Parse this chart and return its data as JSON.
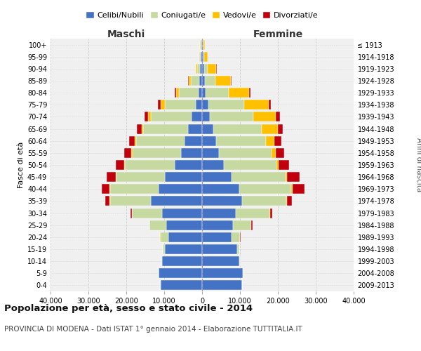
{
  "age_groups": [
    "100+",
    "95-99",
    "90-94",
    "85-89",
    "80-84",
    "75-79",
    "70-74",
    "65-69",
    "60-64",
    "55-59",
    "50-54",
    "45-49",
    "40-44",
    "35-39",
    "30-34",
    "25-29",
    "20-24",
    "15-19",
    "10-14",
    "5-9",
    "0-4"
  ],
  "birth_years": [
    "≤ 1913",
    "1914-1918",
    "1919-1923",
    "1924-1928",
    "1929-1933",
    "1934-1938",
    "1939-1943",
    "1944-1948",
    "1949-1953",
    "1954-1958",
    "1959-1963",
    "1964-1968",
    "1969-1973",
    "1974-1978",
    "1979-1983",
    "1984-1988",
    "1989-1993",
    "1994-1998",
    "1999-2003",
    "2004-2008",
    "2009-2013"
  ],
  "maschi": {
    "celibi": [
      200,
      300,
      500,
      700,
      1000,
      1700,
      2700,
      3700,
      4600,
      5600,
      7200,
      9800,
      11500,
      13500,
      10500,
      9500,
      8800,
      9800,
      10500,
      11500,
      11000
    ],
    "coniugati": [
      200,
      300,
      800,
      2300,
      5200,
      8200,
      10800,
      11800,
      12800,
      12800,
      13200,
      12800,
      12800,
      10800,
      8000,
      4300,
      2200,
      600,
      150,
      50,
      20
    ],
    "vedovi": [
      80,
      150,
      300,
      500,
      700,
      1000,
      700,
      500,
      350,
      250,
      200,
      200,
      150,
      100,
      50,
      30,
      20,
      10,
      5,
      3,
      2
    ],
    "divorziati": [
      20,
      50,
      80,
      150,
      250,
      700,
      1000,
      1300,
      1600,
      1900,
      2100,
      2300,
      2100,
      1100,
      400,
      150,
      80,
      30,
      10,
      5,
      3
    ]
  },
  "femmine": {
    "nubili": [
      200,
      300,
      500,
      700,
      1000,
      1600,
      2100,
      2900,
      3700,
      4500,
      5800,
      7800,
      9900,
      10500,
      8800,
      8200,
      7800,
      9200,
      9800,
      10800,
      10500
    ],
    "coniugate": [
      200,
      300,
      1000,
      2800,
      6000,
      9500,
      11500,
      12800,
      13200,
      13800,
      13800,
      14200,
      13700,
      11700,
      9000,
      4800,
      2200,
      600,
      150,
      40,
      15
    ],
    "vedove": [
      300,
      800,
      2200,
      4000,
      5400,
      6400,
      5900,
      4300,
      2200,
      1100,
      550,
      430,
      320,
      200,
      110,
      50,
      30,
      15,
      5,
      3,
      2
    ],
    "divorziate": [
      20,
      50,
      100,
      200,
      300,
      720,
      1050,
      1350,
      1850,
      2250,
      2900,
      3300,
      3100,
      1250,
      520,
      200,
      100,
      30,
      10,
      5,
      3
    ]
  },
  "colors": {
    "celibi": "#4472c4",
    "coniugati": "#c5d9a0",
    "vedovi": "#ffc000",
    "divorziati": "#c0000c"
  },
  "background_color": "#ffffff",
  "plot_bg": "#f0f0f0",
  "grid_color": "#cccccc"
}
